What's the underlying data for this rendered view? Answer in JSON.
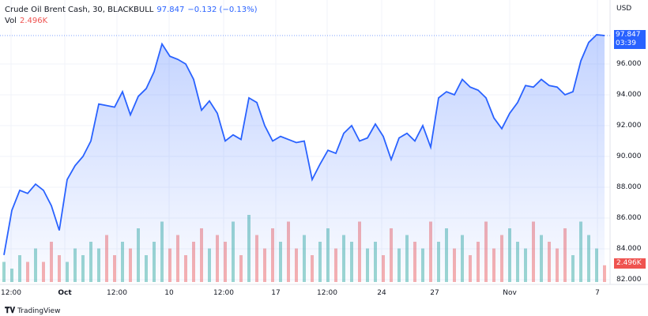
{
  "legend": {
    "symbol": "Crude Oil Brent Cash, 30, BLACKBULL",
    "last": "97.847",
    "change": "−0.132 (−0.13%)",
    "vol_label": "Vol",
    "vol_value": "2.496K"
  },
  "axis": {
    "currency": "USD"
  },
  "price_tag": {
    "value": "97.847",
    "countdown": "03:39"
  },
  "vol_tag": "2.496K",
  "brand": {
    "logo": "TV",
    "name": "TradingView"
  },
  "colors": {
    "line": "#2962ff",
    "up": "#26a69a",
    "down": "#ef5350"
  },
  "chart_data": {
    "type": "line",
    "title": "",
    "ylim": [
      82,
      98.5
    ],
    "y_ticks": [
      "96.000",
      "94.000",
      "92.000",
      "90.000",
      "88.000",
      "86.000",
      "84.000",
      "82.000"
    ],
    "x_ticks": [
      {
        "label": "12:00",
        "bold": false
      },
      {
        "label": "Oct",
        "bold": true
      },
      {
        "label": "12:00",
        "bold": false
      },
      {
        "label": "10",
        "bold": false
      },
      {
        "label": "12:00",
        "bold": false
      },
      {
        "label": "17",
        "bold": false
      },
      {
        "label": "12:00",
        "bold": false
      },
      {
        "label": "24",
        "bold": false
      },
      {
        "label": "27",
        "bold": false
      },
      {
        "label": "Nov",
        "bold": false
      },
      {
        "label": "7",
        "bold": false
      }
    ],
    "price": [
      83.6,
      86.5,
      87.8,
      87.6,
      88.2,
      87.8,
      86.8,
      85.2,
      88.5,
      89.4,
      90,
      91,
      93.4,
      93.3,
      93.2,
      94.2,
      92.7,
      93.9,
      94.4,
      95.5,
      97.3,
      96.5,
      96.3,
      96,
      95,
      93,
      93.6,
      92.8,
      91,
      91.4,
      91.1,
      93.8,
      93.5,
      92,
      91,
      91.3,
      91.1,
      90.9,
      91,
      88.5,
      89.5,
      90.4,
      90.2,
      91.5,
      92,
      91,
      91.2,
      92.1,
      91.3,
      89.8,
      91.2,
      91.5,
      91,
      92,
      90.6,
      93.8,
      94.2,
      94,
      95,
      94.5,
      94.3,
      93.8,
      92.5,
      91.8,
      92.8,
      93.5,
      94.6,
      94.5,
      95,
      94.6,
      94.5,
      94,
      94.2,
      96.2,
      97.4,
      97.9,
      97.847
    ],
    "volume_k": [
      3,
      2,
      4,
      3,
      5,
      3,
      6,
      4,
      3,
      5,
      4,
      6,
      5,
      7,
      4,
      6,
      5,
      8,
      4,
      6,
      9,
      5,
      7,
      4,
      6,
      8,
      5,
      7,
      6,
      9,
      4,
      10,
      7,
      5,
      8,
      6,
      9,
      5,
      7,
      4,
      6,
      8,
      5,
      7,
      6,
      9,
      5,
      6,
      4,
      8,
      5,
      7,
      6,
      5,
      9,
      6,
      8,
      5,
      7,
      4,
      6,
      9,
      5,
      7,
      8,
      6,
      5,
      9,
      7,
      6,
      5,
      8,
      4,
      9,
      7,
      5,
      2.496
    ]
  }
}
